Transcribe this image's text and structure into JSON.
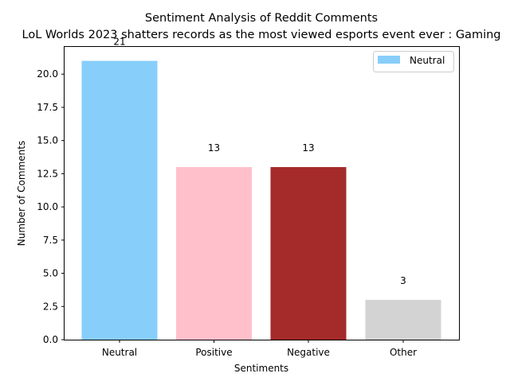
{
  "chart_data": {
    "type": "bar",
    "title": "Sentiment Analysis of Reddit Comments",
    "subtitle": "LoL Worlds 2023 shatters records as the most viewed esports event ever : Gaming",
    "xlabel": "Sentiments",
    "ylabel": "Number of Comments",
    "categories": [
      "Neutral",
      "Positive",
      "Negative",
      "Other"
    ],
    "values": [
      21,
      13,
      13,
      3
    ],
    "colors": [
      "#87CEFA",
      "#FFC0CB",
      "#A52A2A",
      "#D3D3D3"
    ],
    "ylim": [
      0,
      22.05
    ],
    "yticks": [
      "0.0",
      "2.5",
      "5.0",
      "7.5",
      "10.0",
      "12.5",
      "15.0",
      "17.5",
      "20.0"
    ],
    "grid": false,
    "legend": {
      "position": "top-right",
      "entries": [
        {
          "label": "Neutral",
          "color": "#87CEFA"
        }
      ]
    }
  }
}
